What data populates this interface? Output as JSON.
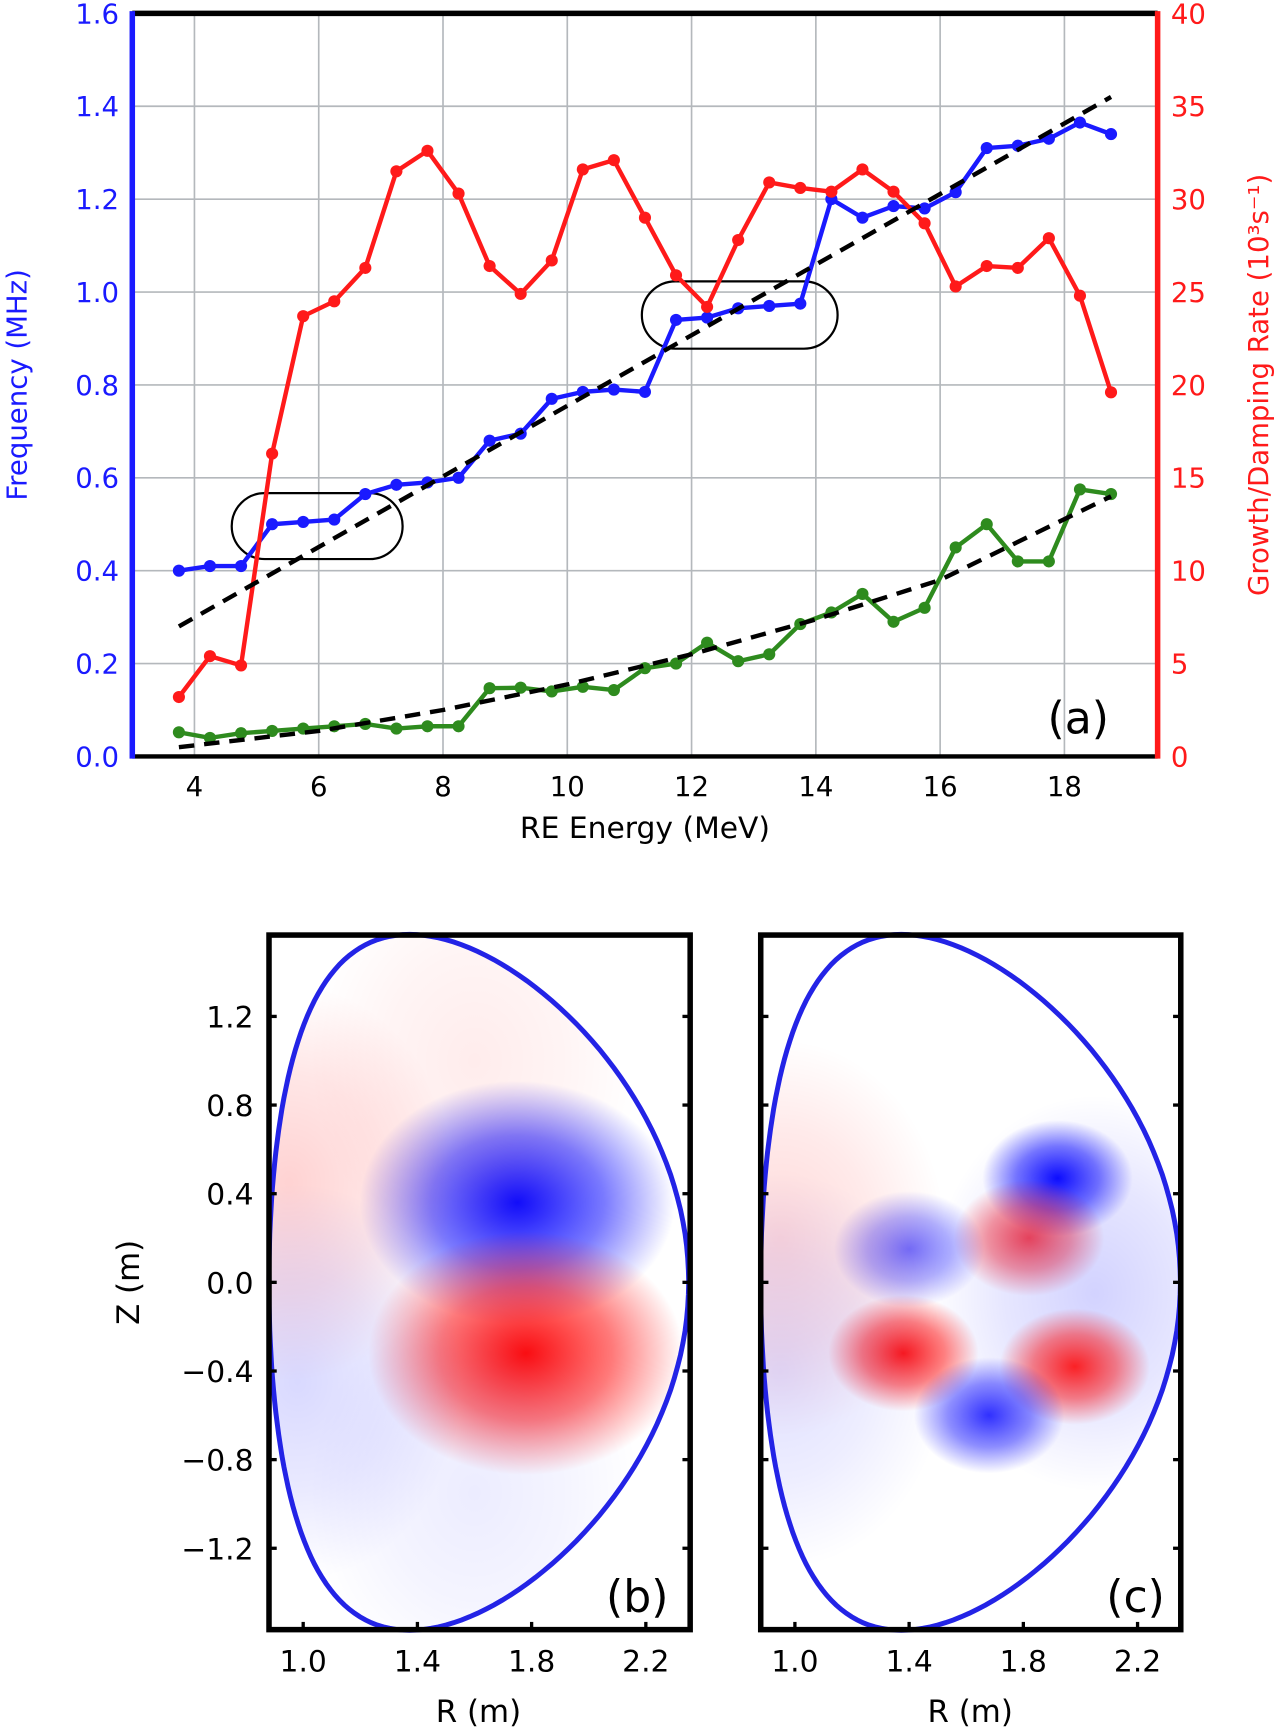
{
  "chart_data": [
    {
      "type": "line",
      "panel_label": "(a)",
      "xlabel": "RE Energy (MeV)",
      "ylabel": "Frequency (MHz)",
      "ylabel_right": "Growth/Damping Rate (10³s⁻¹)",
      "xlim": [
        3,
        19.5
      ],
      "ylim": [
        0,
        1.6
      ],
      "ylim_right": [
        0,
        40
      ],
      "xticks": [
        "4",
        "6",
        "8",
        "10",
        "12",
        "14",
        "16",
        "18"
      ],
      "yticks": [
        "0.0",
        "0.2",
        "0.4",
        "0.6",
        "0.8",
        "1.0",
        "1.2",
        "1.4",
        "1.6"
      ],
      "yticks_right": [
        "0",
        "5",
        "10",
        "15",
        "20",
        "25",
        "30",
        "35",
        "40"
      ],
      "grid": true,
      "colors": {
        "frequency": "#1a1aff",
        "growth": "#ff1a1a",
        "damping": "#2e8b1e",
        "fit": "#000000"
      },
      "x": [
        3.75,
        4.25,
        4.75,
        5.25,
        5.75,
        6.25,
        6.75,
        7.25,
        7.75,
        8.25,
        8.75,
        9.25,
        9.75,
        10.25,
        10.75,
        11.25,
        11.75,
        12.25,
        12.75,
        13.25,
        13.75,
        14.25,
        14.75,
        15.25,
        15.75,
        16.25,
        16.75,
        17.25,
        17.75,
        18.25,
        18.75
      ],
      "series": [
        {
          "axis": "left",
          "color": "#1a1aff",
          "values": [
            0.4,
            0.41,
            0.41,
            0.5,
            0.505,
            0.51,
            0.565,
            0.585,
            0.59,
            0.6,
            0.68,
            0.695,
            0.77,
            0.785,
            0.79,
            0.785,
            0.94,
            0.945,
            0.965,
            0.97,
            0.975,
            1.2,
            1.16,
            1.185,
            1.18,
            1.215,
            1.31,
            1.315,
            1.33,
            1.365,
            1.34
          ]
        },
        {
          "axis": "right",
          "color": "#ff1a1a",
          "values": [
            3.2,
            5.4,
            4.9,
            16.3,
            23.7,
            24.5,
            26.3,
            31.5,
            32.6,
            30.3,
            26.4,
            24.9,
            26.7,
            31.6,
            32.1,
            29.0,
            25.9,
            24.2,
            27.8,
            30.9,
            30.6,
            30.4,
            31.6,
            30.4,
            28.7,
            25.3,
            26.4,
            26.3,
            27.9,
            24.8,
            19.6
          ]
        },
        {
          "axis": "left",
          "color": "#2e8b1e",
          "values": [
            0.052,
            0.04,
            0.05,
            0.055,
            0.06,
            0.065,
            0.07,
            0.06,
            0.065,
            0.065,
            0.147,
            0.148,
            0.14,
            0.15,
            0.143,
            0.19,
            0.2,
            0.245,
            0.205,
            0.22,
            0.285,
            0.31,
            0.35,
            0.29,
            0.32,
            0.45,
            0.5,
            0.42,
            0.42,
            0.575,
            0.565
          ]
        }
      ],
      "fits": [
        {
          "style": "dashed",
          "x": [
            3.75,
            18.75
          ],
          "y": [
            0.28,
            1.42
          ]
        },
        {
          "style": "dashed",
          "x": [
            3.75,
            6,
            8,
            10,
            12,
            14,
            16,
            18.75
          ],
          "y": [
            0.02,
            0.055,
            0.1,
            0.155,
            0.22,
            0.295,
            0.38,
            0.56
          ]
        }
      ],
      "highlight_boxes": [
        {
          "x": [
            4.6,
            7.35
          ],
          "y": [
            0.425,
            0.567
          ]
        },
        {
          "x": [
            11.2,
            14.35
          ],
          "y": [
            0.878,
            1.023
          ]
        }
      ]
    },
    {
      "type": "heatmap",
      "panel_label": "(b)",
      "xlabel": "R (m)",
      "ylabel": "Z (m)",
      "xticks": [
        "1.0",
        "1.4",
        "1.8",
        "2.2"
      ],
      "yticks": [
        "1.2",
        "0.8",
        "0.4",
        "0.0",
        "−0.4",
        "−0.8",
        "−1.2"
      ],
      "colors": {
        "positive": "#ff0000",
        "negative": "#0000ff",
        "boundary": "#2323e6"
      },
      "field_extrema": [
        {
          "sign": "negative",
          "R": 1.75,
          "Z": 0.36,
          "strength": 1.0
        },
        {
          "sign": "positive",
          "R": 1.78,
          "Z": -0.32,
          "strength": 1.0
        },
        {
          "sign": "positive",
          "R": 0.95,
          "Z": 0.45,
          "strength": 0.35
        },
        {
          "sign": "positive",
          "R": 1.6,
          "Z": 1.0,
          "strength": 0.15
        },
        {
          "sign": "negative",
          "R": 0.98,
          "Z": -0.45,
          "strength": 0.3
        },
        {
          "sign": "negative",
          "R": 1.6,
          "Z": -0.95,
          "strength": 0.15
        }
      ]
    },
    {
      "type": "heatmap",
      "panel_label": "(c)",
      "xlabel": "R (m)",
      "xticks": [
        "1.0",
        "1.4",
        "1.8",
        "2.2"
      ],
      "colors": {
        "positive": "#ff0000",
        "negative": "#0000ff",
        "boundary": "#2323e6"
      },
      "field_extrema": [
        {
          "sign": "negative",
          "R": 1.92,
          "Z": 0.47,
          "strength": 1.0
        },
        {
          "sign": "positive",
          "R": 1.82,
          "Z": 0.2,
          "strength": 0.75
        },
        {
          "sign": "negative",
          "R": 1.4,
          "Z": 0.15,
          "strength": 0.6
        },
        {
          "sign": "negative",
          "R": 2.05,
          "Z": -0.05,
          "strength": 0.35
        },
        {
          "sign": "positive",
          "R": 1.38,
          "Z": -0.32,
          "strength": 0.95
        },
        {
          "sign": "positive",
          "R": 1.98,
          "Z": -0.38,
          "strength": 0.9
        },
        {
          "sign": "negative",
          "R": 1.68,
          "Z": -0.6,
          "strength": 0.85
        },
        {
          "sign": "positive",
          "R": 0.95,
          "Z": 0.2,
          "strength": 0.3
        },
        {
          "sign": "negative",
          "R": 0.95,
          "Z": -0.4,
          "strength": 0.25
        }
      ]
    }
  ]
}
